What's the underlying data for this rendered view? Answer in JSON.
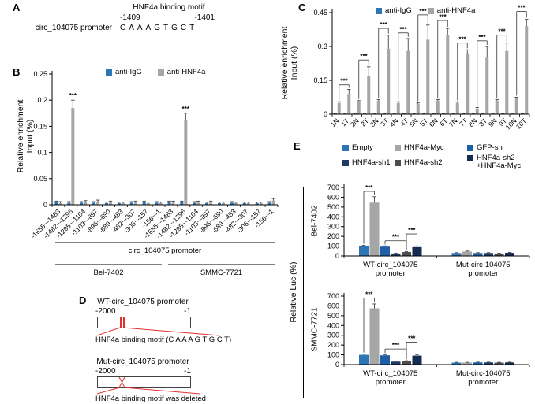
{
  "panels": {
    "a": {
      "label": "A",
      "motif_title": "HNF4a binding motif",
      "pos_left": "-1409",
      "pos_right": "-1401",
      "promoter_label": "circ_104075 promoter",
      "sequence": "CAAAGTGCT"
    },
    "b": {
      "label": "B",
      "ylabel_line1": "Relative enrichment",
      "ylabel_line2": "Input (%)"
    },
    "c": {
      "label": "C",
      "ylabel_line1": "Relative enrichment",
      "ylabel_line2": "Input (%)"
    },
    "d": {
      "label": "D",
      "accent": "#e03030",
      "wt": {
        "title": "WT-circ_104075 promoter",
        "left_coord": "-2000",
        "right_coord": "-1",
        "caption": "HNF4a binding motif (C A A A G T G C T)"
      },
      "mut": {
        "title": "Mut-circ_104075 promoter",
        "left_coord": "-2000",
        "right_coord": "-1",
        "caption": "HNF4a binding motif was deleted"
      }
    },
    "e": {
      "label": "E",
      "ylabel": "Relative Luc (%)",
      "cell_line_top": "Bel-7402",
      "cell_line_bottom": "SMMC-7721"
    }
  },
  "chart_data": [
    {
      "id": "chart-b",
      "type": "bar",
      "ylabel": "Relative enrichment Input (%)",
      "ylim": [
        0,
        0.25
      ],
      "yticks": [
        "0",
        "0.05",
        "0.1",
        "0.15",
        "0.2",
        "0.25"
      ],
      "categories": [
        "-1655~-1483",
        "-1482~-1296",
        "-1295~-1104",
        "-1103~-897",
        "-896~-690",
        "-689~-483",
        "-482~-307",
        "-306~-157",
        "-156~-1",
        "-1655~-1483",
        "-1482~-1296",
        "-1295~-1104",
        "-1103~-897",
        "-896~-690",
        "-689~-483",
        "-482~-307",
        "-306~-157",
        "-156~-1"
      ],
      "series": [
        {
          "name": "anti-IgG",
          "color": "#2e75b6",
          "values": [
            0.005,
            0.004,
            0.004,
            0.004,
            0.003,
            0.003,
            0.004,
            0.005,
            0.004,
            0.005,
            0.005,
            0.004,
            0.003,
            0.003,
            0.004,
            0.003,
            0.003,
            0.004
          ],
          "errors": [
            0.002,
            0.002,
            0.002,
            0.002,
            0.002,
            0.002,
            0.002,
            0.002,
            0.002,
            0.002,
            0.002,
            0.002,
            0.002,
            0.002,
            0.002,
            0.002,
            0.002,
            0.002
          ]
        },
        {
          "name": "anti-HNF4a",
          "color": "#a6a6a6",
          "values": [
            0.003,
            0.185,
            0.005,
            0.006,
            0.004,
            0.003,
            0.004,
            0.003,
            0.003,
            0.004,
            0.162,
            0.004,
            0.004,
            0.003,
            0.003,
            0.003,
            0.003,
            0.008
          ],
          "errors": [
            0.003,
            0.015,
            0.003,
            0.003,
            0.003,
            0.002,
            0.003,
            0.002,
            0.002,
            0.003,
            0.013,
            0.003,
            0.003,
            0.002,
            0.002,
            0.002,
            0.002,
            0.004
          ]
        }
      ],
      "significance": [
        {
          "a": {
            "g": 1,
            "s": 1
          },
          "label": "***"
        },
        {
          "a": {
            "g": 10,
            "s": 1
          },
          "label": "***"
        }
      ],
      "group_labels": [
        {
          "label": "circ_104075 promoter",
          "from": 0,
          "to": 17
        },
        {
          "label": "Bel-7402",
          "from": 0,
          "to": 8
        },
        {
          "label": "SMMC-7721",
          "from": 9,
          "to": 17
        }
      ]
    },
    {
      "id": "chart-c",
      "type": "bar",
      "ylabel": "Relative enrichment Input (%)",
      "ylim": [
        0,
        0.45
      ],
      "yticks": [
        "0",
        "0.15",
        "0.3",
        "0.45"
      ],
      "categories": [
        "1N",
        "1T",
        "2N",
        "2T",
        "3N",
        "3T",
        "4N",
        "4T",
        "5N",
        "5T",
        "6N",
        "6T",
        "7N",
        "7T",
        "8N",
        "8T",
        "9N",
        "9T",
        "10N",
        "10T"
      ],
      "series": [
        {
          "name": "anti-IgG",
          "color": "#2e75b6",
          "values": [
            0.003,
            0.003,
            0.003,
            0.003,
            0.003,
            0.003,
            0.004,
            0.003,
            0.003,
            0.003,
            0.003,
            0.003,
            0.003,
            0.003,
            0.003,
            0.003,
            0.003,
            0.003,
            0.003,
            0.003
          ],
          "errors": [
            0.001,
            0.001,
            0.001,
            0.001,
            0.001,
            0.001,
            0.001,
            0.001,
            0.001,
            0.001,
            0.001,
            0.001,
            0.001,
            0.001,
            0.001,
            0.001,
            0.001,
            0.001,
            0.001,
            0.001
          ]
        },
        {
          "name": "anti-HNF4a",
          "color": "#a6a6a6",
          "values": [
            0.05,
            0.09,
            0.055,
            0.17,
            0.06,
            0.29,
            0.05,
            0.28,
            0.045,
            0.33,
            0.06,
            0.35,
            0.05,
            0.27,
            0.025,
            0.25,
            0.06,
            0.28,
            0.07,
            0.39
          ],
          "errors": [
            0.005,
            0.02,
            0.005,
            0.04,
            0.005,
            0.06,
            0.005,
            0.055,
            0.005,
            0.065,
            0.005,
            0.03,
            0.005,
            0.015,
            0.005,
            0.05,
            0.005,
            0.035,
            0.005,
            0.03
          ]
        }
      ],
      "significance": [
        {
          "a": {
            "g": 0,
            "s": 1
          },
          "b": {
            "g": 1,
            "s": 1
          },
          "y": 0.13,
          "label": "***"
        },
        {
          "a": {
            "g": 2,
            "s": 1
          },
          "b": {
            "g": 3,
            "s": 1
          },
          "y": 0.24,
          "label": "***"
        },
        {
          "a": {
            "g": 4,
            "s": 1
          },
          "b": {
            "g": 5,
            "s": 1
          },
          "y": 0.38,
          "label": "***"
        },
        {
          "a": {
            "g": 6,
            "s": 1
          },
          "b": {
            "g": 7,
            "s": 1
          },
          "y": 0.36,
          "label": "***"
        },
        {
          "a": {
            "g": 8,
            "s": 1
          },
          "b": {
            "g": 9,
            "s": 1
          },
          "y": 0.44,
          "label": "***"
        },
        {
          "a": {
            "g": 10,
            "s": 1
          },
          "b": {
            "g": 11,
            "s": 1
          },
          "y": 0.415,
          "label": "***"
        },
        {
          "a": {
            "g": 12,
            "s": 1
          },
          "b": {
            "g": 13,
            "s": 1
          },
          "y": 0.315,
          "label": "***"
        },
        {
          "a": {
            "g": 14,
            "s": 1
          },
          "b": {
            "g": 15,
            "s": 1
          },
          "y": 0.325,
          "label": "***"
        },
        {
          "a": {
            "g": 16,
            "s": 1
          },
          "b": {
            "g": 17,
            "s": 1
          },
          "y": 0.35,
          "label": "***"
        },
        {
          "a": {
            "g": 18,
            "s": 1
          },
          "b": {
            "g": 19,
            "s": 1
          },
          "y": 0.455,
          "label": "***"
        }
      ]
    },
    {
      "id": "chart-e1",
      "type": "bar",
      "title": "Bel-7402",
      "ylabel": "Relative Luc (%)",
      "ylim": [
        0,
        700
      ],
      "yticks": [
        "0",
        "100",
        "200",
        "300",
        "400",
        "500",
        "600",
        "700"
      ],
      "categories": [
        "WT-circ_104075\npromoter",
        "Mut-circ-104075\npromoter"
      ],
      "series": [
        {
          "name": "Empty",
          "color": "#2e75b6",
          "values": [
            100,
            30
          ],
          "errors": [
            8,
            4
          ]
        },
        {
          "name": "HNF4a-Myc",
          "color": "#a6a6a6",
          "values": [
            545,
            45
          ],
          "errors": [
            60,
            5
          ]
        },
        {
          "name": "GFP-sh",
          "color": "#1f5fa8",
          "values": [
            95,
            30
          ],
          "errors": [
            8,
            4
          ]
        },
        {
          "name": "HNF4a-sh1",
          "color": "#1f3864",
          "values": [
            25,
            30
          ],
          "errors": [
            4,
            4
          ]
        },
        {
          "name": "HNF4a-sh2",
          "color": "#4d4d4d",
          "values": [
            40,
            25
          ],
          "errors": [
            5,
            4
          ]
        },
        {
          "name": "HNF4a-sh2 +HNF4a-Myc",
          "color": "#142e52",
          "values": [
            90,
            32
          ],
          "errors": [
            12,
            4
          ]
        }
      ],
      "significance": [
        {
          "a": {
            "g": 0,
            "s": 0
          },
          "b": {
            "g": 0,
            "s": 1
          },
          "y": 660,
          "label": "***"
        },
        {
          "a": {
            "g": 0,
            "s": 2
          },
          "b": {
            "g": 0,
            "s": 4
          },
          "y": 155,
          "label": "***"
        },
        {
          "a": {
            "g": 0,
            "s": 4
          },
          "b": {
            "g": 0,
            "s": 5
          },
          "y": 225,
          "label": "***"
        }
      ]
    },
    {
      "id": "chart-e2",
      "type": "bar",
      "title": "SMMC-7721",
      "ylabel": "Relative Luc (%)",
      "ylim": [
        0,
        700
      ],
      "yticks": [
        "0",
        "100",
        "200",
        "300",
        "400",
        "500",
        "600",
        "700"
      ],
      "categories": [
        "WT-circ_104075\npromoter",
        "Mut-circ-104075\npromoter"
      ],
      "series": [
        {
          "name": "Empty",
          "color": "#2e75b6",
          "values": [
            100,
            20
          ],
          "errors": [
            8,
            3
          ]
        },
        {
          "name": "HNF4a-Myc",
          "color": "#a6a6a6",
          "values": [
            575,
            20
          ],
          "errors": [
            45,
            3
          ]
        },
        {
          "name": "GFP-sh",
          "color": "#1f5fa8",
          "values": [
            95,
            22
          ],
          "errors": [
            8,
            3
          ]
        },
        {
          "name": "HNF4a-sh1",
          "color": "#1f3864",
          "values": [
            30,
            22
          ],
          "errors": [
            4,
            3
          ]
        },
        {
          "name": "HNF4a-sh2",
          "color": "#4d4d4d",
          "values": [
            35,
            20
          ],
          "errors": [
            4,
            3
          ]
        },
        {
          "name": "HNF4a-sh2 +HNF4a-Myc",
          "color": "#142e52",
          "values": [
            92,
            22
          ],
          "errors": [
            10,
            3
          ]
        }
      ],
      "significance": [
        {
          "a": {
            "g": 0,
            "s": 0
          },
          "b": {
            "g": 0,
            "s": 1
          },
          "y": 680,
          "label": "***"
        },
        {
          "a": {
            "g": 0,
            "s": 2
          },
          "b": {
            "g": 0,
            "s": 4
          },
          "y": 160,
          "label": "***"
        },
        {
          "a": {
            "g": 0,
            "s": 4
          },
          "b": {
            "g": 0,
            "s": 5
          },
          "y": 230,
          "label": "***"
        }
      ]
    }
  ]
}
